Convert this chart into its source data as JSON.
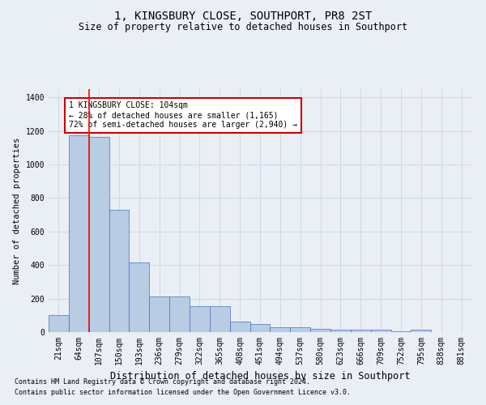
{
  "title": "1, KINGSBURY CLOSE, SOUTHPORT, PR8 2ST",
  "subtitle": "Size of property relative to detached houses in Southport",
  "xlabel": "Distribution of detached houses by size in Southport",
  "ylabel": "Number of detached properties",
  "footnote1": "Contains HM Land Registry data © Crown copyright and database right 2024.",
  "footnote2": "Contains public sector information licensed under the Open Government Licence v3.0.",
  "categories": [
    "21sqm",
    "64sqm",
    "107sqm",
    "150sqm",
    "193sqm",
    "236sqm",
    "279sqm",
    "322sqm",
    "365sqm",
    "408sqm",
    "451sqm",
    "494sqm",
    "537sqm",
    "580sqm",
    "623sqm",
    "666sqm",
    "709sqm",
    "752sqm",
    "795sqm",
    "838sqm",
    "881sqm"
  ],
  "values": [
    100,
    1175,
    1165,
    730,
    415,
    215,
    215,
    155,
    155,
    65,
    50,
    30,
    30,
    20,
    15,
    15,
    15,
    5,
    15,
    0,
    0
  ],
  "bar_color": "#b8cce4",
  "bar_edge_color": "#4472c4",
  "grid_color": "#d0d8e8",
  "background_color": "#eaeef5",
  "red_line_bar_index": 2,
  "annotation_text": "1 KINGSBURY CLOSE: 104sqm\n← 28% of detached houses are smaller (1,165)\n72% of semi-detached houses are larger (2,940) →",
  "annotation_box_color": "#ffffff",
  "annotation_box_edge_color": "#cc0000",
  "ylim": [
    0,
    1450
  ],
  "yticks": [
    0,
    200,
    400,
    600,
    800,
    1000,
    1200,
    1400
  ],
  "title_fontsize": 10,
  "subtitle_fontsize": 8.5,
  "xlabel_fontsize": 8.5,
  "ylabel_fontsize": 7.5,
  "tick_fontsize": 7,
  "annotation_fontsize": 7,
  "footnote_fontsize": 6
}
